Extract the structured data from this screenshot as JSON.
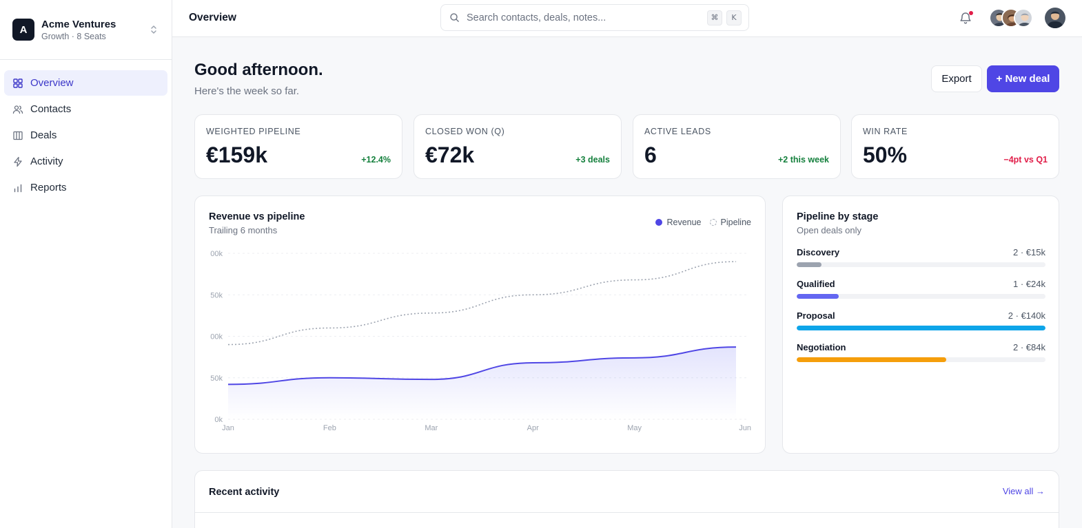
{
  "workspace": {
    "initial": "A",
    "name": "Acme Ventures",
    "plan": "Growth · 8 Seats"
  },
  "nav": [
    {
      "label": "Overview",
      "icon": "grid-icon",
      "active": true
    },
    {
      "label": "Contacts",
      "icon": "users-icon"
    },
    {
      "label": "Deals",
      "icon": "kanban-icon"
    },
    {
      "label": "Activity",
      "icon": "bolt-icon"
    },
    {
      "label": "Reports",
      "icon": "bar-chart-icon"
    }
  ],
  "topbar": {
    "title": "Overview",
    "search_placeholder": "Search contacts, deals, notes...",
    "shortcut_mod": "⌘",
    "shortcut_key": "K"
  },
  "header": {
    "greeting": "Good afternoon.",
    "subtitle": "Here's the week so far.",
    "export_label": "Export",
    "new_deal_label": "+ New deal"
  },
  "kpis": [
    {
      "label": "Weighted pipeline",
      "value": "€159k",
      "delta": "+12.4%",
      "trend": "up"
    },
    {
      "label": "Closed won (Q)",
      "value": "€72k",
      "delta": "+3 deals",
      "trend": "up"
    },
    {
      "label": "Active leads",
      "value": "6",
      "delta": "+2 this week",
      "trend": "up"
    },
    {
      "label": "Win rate",
      "value": "50%",
      "delta": "−4pt vs Q1",
      "trend": "down"
    }
  ],
  "revenue_card": {
    "title": "Revenue vs pipeline",
    "subtitle": "Trailing 6 months",
    "legend_revenue": "Revenue",
    "legend_pipeline": "Pipeline"
  },
  "chart_data": {
    "type": "area",
    "title": "Revenue vs pipeline",
    "subtitle": "Trailing 6 months",
    "categories": [
      "Jan",
      "Feb",
      "Mar",
      "Apr",
      "May",
      "Jun"
    ],
    "y_tick_labels": [
      "0k",
      "50k",
      "00k",
      "50k",
      "00k"
    ],
    "ylim": [
      0,
      200
    ],
    "grid": true,
    "legend_position": "top-right",
    "series": [
      {
        "name": "Revenue",
        "style": "area",
        "color": "#4f46e5",
        "values": [
          42,
          50,
          48,
          68,
          74,
          87
        ]
      },
      {
        "name": "Pipeline",
        "style": "dashed",
        "color": "#9ca3af",
        "values": [
          90,
          110,
          128,
          150,
          168,
          190
        ]
      }
    ]
  },
  "stages_card": {
    "title": "Pipeline by stage",
    "subtitle": "Open deals only",
    "stages": [
      {
        "name": "Discovery",
        "meta": "2 · €15k",
        "share": 0.1,
        "color": "#9ca3af"
      },
      {
        "name": "Qualified",
        "meta": "1 · €24k",
        "share": 0.17,
        "color": "#6366f1"
      },
      {
        "name": "Proposal",
        "meta": "2 · €140k",
        "share": 1.0,
        "color": "#0ea5e9"
      },
      {
        "name": "Negotiation",
        "meta": "2 · €84k",
        "share": 0.6,
        "color": "#f59e0b"
      }
    ]
  },
  "activity_card": {
    "title": "Recent activity",
    "view_all": "View all →"
  }
}
